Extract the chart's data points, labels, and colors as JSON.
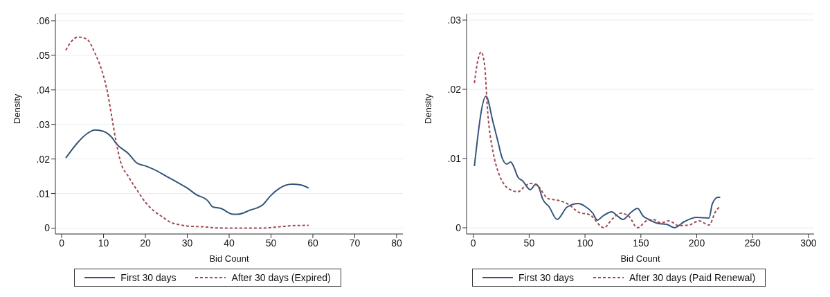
{
  "chart_data": [
    {
      "type": "line",
      "xlabel": "Bid Count",
      "ylabel": "Density",
      "xlim": [
        -1.5,
        81.5
      ],
      "xticks": [
        0,
        10,
        20,
        30,
        40,
        50,
        60,
        70,
        80
      ],
      "ylim": [
        -0.0017,
        0.062
      ],
      "yticks": [
        0,
        {
          "value": 0.01,
          "label": ".01"
        },
        {
          "value": 0.02,
          "label": ".02"
        },
        {
          "value": 0.03,
          "label": ".03"
        },
        {
          "value": 0.04,
          "label": ".04"
        },
        {
          "value": 0.05,
          "label": ".05"
        },
        {
          "value": 0.06,
          "label": ".06"
        }
      ],
      "grid": "y",
      "legend": "bottom",
      "marker": "none",
      "series": [
        {
          "name": "First 30 days",
          "color": "#34557a",
          "line_style": "solid",
          "x": [
            1,
            4,
            6,
            8,
            10,
            12,
            13,
            16,
            18,
            20,
            22,
            25,
            28,
            30,
            32,
            35,
            36,
            38,
            41,
            42,
            45,
            48,
            50,
            52,
            55,
            57,
            59
          ],
          "values": [
            0.0203,
            0.025,
            0.0273,
            0.0284,
            0.028,
            0.0262,
            0.0245,
            0.0215,
            0.0188,
            0.018,
            0.017,
            0.015,
            0.013,
            0.0116,
            0.0098,
            0.0078,
            0.0062,
            0.0057,
            0.004,
            0.004,
            0.0052,
            0.0067,
            0.0095,
            0.0115,
            0.0127,
            0.0125,
            0.0116
          ]
        },
        {
          "name": "After 30 days (Expired)",
          "color": "#a0484f",
          "line_style": "dashed",
          "x": [
            1,
            2,
            4,
            6,
            8,
            10,
            11,
            12,
            13,
            14,
            16,
            18,
            20,
            22,
            24,
            26,
            28,
            30,
            35,
            36,
            40,
            48,
            52,
            55,
            59
          ],
          "values": [
            0.0515,
            0.0535,
            0.0553,
            0.0547,
            0.0505,
            0.044,
            0.039,
            0.032,
            0.025,
            0.0195,
            0.0148,
            0.011,
            0.0075,
            0.005,
            0.0033,
            0.0017,
            0.001,
            0.0006,
            0.0003,
            0.0001,
            0,
            0,
            0.0004,
            0.0007,
            0.0008
          ]
        }
      ]
    },
    {
      "type": "line",
      "xlabel": "Bid Count",
      "ylabel": "Density",
      "xlim": [
        -6,
        305
      ],
      "xticks": [
        0,
        50,
        100,
        150,
        200,
        250,
        300
      ],
      "ylim": [
        -0.0009,
        0.0309
      ],
      "yticks": [
        0,
        {
          "value": 0.01,
          "label": ".01"
        },
        {
          "value": 0.02,
          "label": ".02"
        },
        {
          "value": 0.03,
          "label": ".03"
        }
      ],
      "grid": "y",
      "legend": "bottom",
      "marker": "none",
      "series": [
        {
          "name": "First 30 days",
          "color": "#34557a",
          "line_style": "solid",
          "x": [
            1,
            11.4,
            17.6,
            22,
            25.6,
            30,
            33.5,
            36,
            40,
            44,
            51,
            56,
            59,
            62,
            68,
            75,
            84,
            94,
            100,
            107,
            111,
            116,
            124,
            129,
            134,
            141,
            147,
            152,
            157,
            166,
            173,
            180,
            189,
            200,
            211,
            214,
            219,
            221
          ],
          "values": [
            0.0089,
            0.019,
            0.0153,
            0.0125,
            0.0102,
            0.0092,
            0.0095,
            0.0089,
            0.0073,
            0.0068,
            0.0055,
            0.0063,
            0.0057,
            0.0042,
            0.003,
            0.0012,
            0.003,
            0.0035,
            0.0031,
            0.0021,
            0.0011,
            0.0017,
            0.0023,
            0.0017,
            0.0012,
            0.0022,
            0.0028,
            0.0017,
            0.0012,
            0.0006,
            0.0005,
            0,
            0.0009,
            0.0015,
            0.0014,
            0.0035,
            0.0044,
            0.0044
          ]
        },
        {
          "name": "After 30 days (Paid Renewal)",
          "color": "#a0484f",
          "line_style": "dashed",
          "x": [
            1,
            4,
            7,
            10,
            13,
            18,
            22,
            28,
            31,
            40,
            47,
            51,
            58,
            67,
            75,
            84,
            95,
            104,
            117,
            124,
            132,
            139,
            147,
            155,
            161,
            168,
            175,
            184,
            193,
            202,
            211,
            217,
            221
          ],
          "values": [
            0.0209,
            0.0241,
            0.0254,
            0.0237,
            0.0165,
            0.0107,
            0.0082,
            0.0062,
            0.0057,
            0.0052,
            0.0061,
            0.0064,
            0.006,
            0.0042,
            0.004,
            0.0035,
            0.0022,
            0.0019,
            0,
            0.0012,
            0.0021,
            0.0017,
            0,
            0.001,
            0.0012,
            0.0007,
            0.001,
            0.0003,
            0.0004,
            0.001,
            0.0004,
            0.0024,
            0.0031
          ]
        }
      ]
    }
  ]
}
